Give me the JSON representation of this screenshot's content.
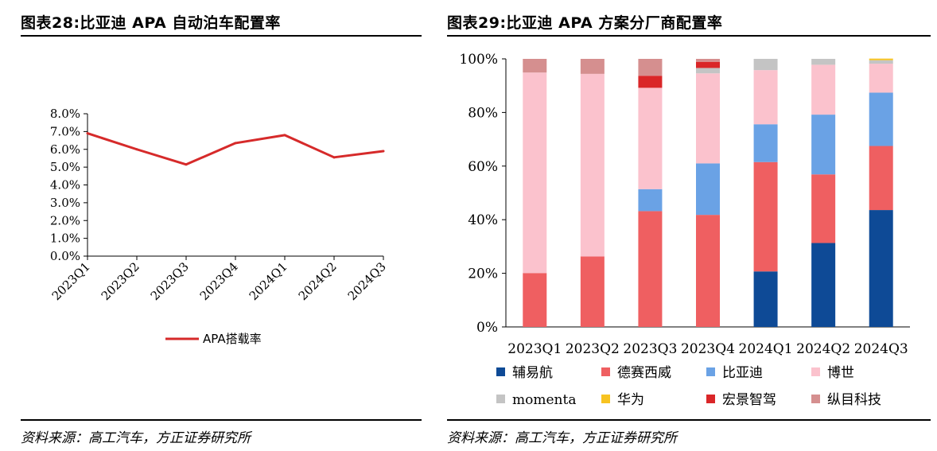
{
  "left": {
    "title": "图表28:比亚迪 APA 自动泊车配置率",
    "source": "资料来源：高工汽车，方正证券研究所"
  },
  "right": {
    "title": "图表29:比亚迪 APA 方案分厂商配置率",
    "source": "资料来源：高工汽车，方正证券研究所"
  },
  "chart_data": [
    {
      "type": "line",
      "title": "",
      "categories": [
        "2023Q1",
        "2023Q2",
        "2023Q3",
        "2023Q4",
        "2024Q1",
        "2024Q2",
        "2024Q3"
      ],
      "y_tick_labels": [
        "0.0%",
        "1.0%",
        "2.0%",
        "3.0%",
        "4.0%",
        "5.0%",
        "6.0%",
        "7.0%",
        "8.0%"
      ],
      "ylim": [
        0,
        8
      ],
      "y_unit": "%",
      "grid": false,
      "legend_position": "bottom",
      "series": [
        {
          "name": "APA搭载率",
          "color": "#D62A2A",
          "values": [
            6.9,
            6.0,
            5.15,
            6.35,
            6.8,
            5.55,
            5.9
          ]
        }
      ]
    },
    {
      "type": "bar",
      "stacked": true,
      "title": "",
      "categories": [
        "2023Q1",
        "2023Q2",
        "2023Q3",
        "2023Q4",
        "2024Q1",
        "2024Q2",
        "2024Q3"
      ],
      "y_tick_labels": [
        "0%",
        "20%",
        "40%",
        "60%",
        "80%",
        "100%"
      ],
      "ylim": [
        0,
        100
      ],
      "y_unit": "%",
      "grid": false,
      "legend_position": "bottom",
      "series": [
        {
          "name": "辅易航",
          "color": "#0E4A96",
          "values": [
            0,
            0,
            0,
            0,
            20.7,
            31.3,
            43.6
          ]
        },
        {
          "name": "德赛西威",
          "color": "#EF5F61",
          "values": [
            20.1,
            26.3,
            43.2,
            41.8,
            40.8,
            25.6,
            23.9
          ]
        },
        {
          "name": "比亚迪",
          "color": "#6AA2E5",
          "values": [
            0,
            0,
            8.2,
            19.2,
            14.1,
            22.3,
            19.9
          ]
        },
        {
          "name": "博世",
          "color": "#FBC2CD",
          "values": [
            74.8,
            68.1,
            37.8,
            33.6,
            20.2,
            18.6,
            10.8
          ]
        },
        {
          "name": "momenta",
          "color": "#C4C4C4",
          "values": [
            0,
            0,
            0,
            2.0,
            4.2,
            2.2,
            1.3
          ]
        },
        {
          "name": "华为",
          "color": "#F7C321",
          "values": [
            0,
            0,
            0,
            0,
            0,
            0,
            0.6
          ]
        },
        {
          "name": "宏景智驾",
          "color": "#DA2628",
          "values": [
            0,
            0,
            4.5,
            2.3,
            0,
            0,
            0
          ]
        },
        {
          "name": "纵目科技",
          "color": "#D58F8F",
          "values": [
            5.1,
            5.6,
            6.3,
            1.1,
            0,
            0,
            0
          ]
        }
      ]
    }
  ]
}
